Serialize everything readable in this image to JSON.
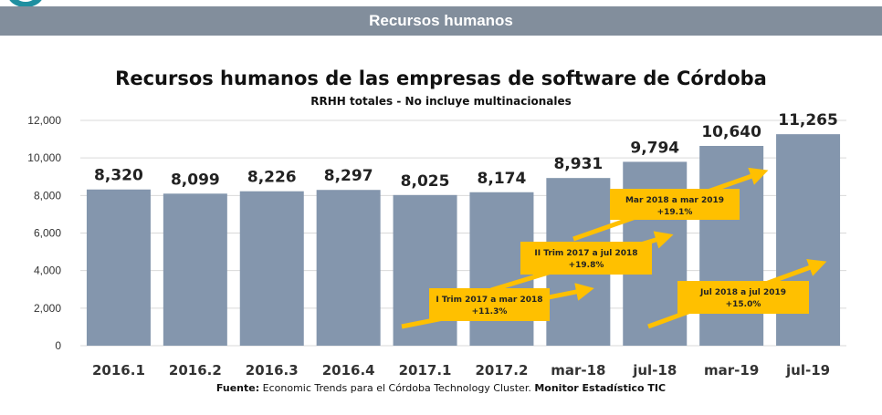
{
  "banner": {
    "title": "Recursos humanos"
  },
  "footer": {
    "source_label": "Fuente:",
    "source_text": "Economic Trends para el Córdoba Technology Cluster.",
    "source_extra": "Monitor Estadístico TIC"
  },
  "colors": {
    "bar": "#8496ad",
    "banner": "#828e9c",
    "annotation_fill": "#ffc000",
    "arrow": "#ffc000",
    "gridline": "#d9d9d9",
    "logo": "#1f8fa0"
  },
  "chart_data": {
    "type": "bar",
    "title": "Recursos humanos de las empresas de software de Córdoba",
    "subtitle": "RRHH totales - No incluye multinacionales",
    "categories": [
      "2016.1",
      "2016.2",
      "2016.3",
      "2016.4",
      "2017.1",
      "2017.2",
      "mar-18",
      "jul-18",
      "mar-19",
      "jul-19"
    ],
    "values": [
      8320,
      8099,
      8226,
      8297,
      8025,
      8174,
      8931,
      9794,
      10640,
      11265
    ],
    "value_labels": [
      "8,320",
      "8,099",
      "8,226",
      "8,297",
      "8,025",
      "8,174",
      "8,931",
      "9,794",
      "10,640",
      "11,265"
    ],
    "ylim": [
      0,
      12000
    ],
    "yticks": [
      0,
      2000,
      4000,
      6000,
      8000,
      10000,
      12000
    ],
    "ytick_labels": [
      "0",
      "2,000",
      "4,000",
      "6,000",
      "8,000",
      "10,000",
      "12,000"
    ],
    "grid": true,
    "annotations": [
      {
        "line1": "I Trim 2017 a mar 2018",
        "line2": "+11.3%"
      },
      {
        "line1": "II Trim 2017 a jul 2018",
        "line2": "+19.8%"
      },
      {
        "line1": "Mar 2018 a mar 2019",
        "line2": "+19.1%"
      },
      {
        "line1": "Jul 2018 a jul 2019",
        "line2": "+15.0%"
      }
    ]
  }
}
